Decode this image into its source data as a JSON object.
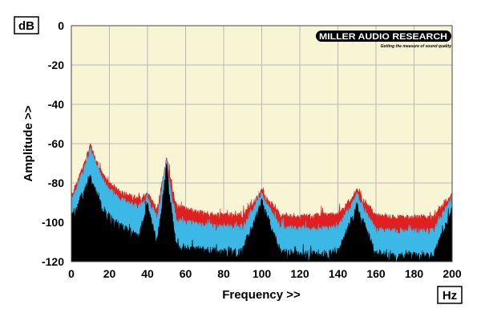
{
  "chart_data": {
    "type": "area",
    "title": "",
    "xlabel": "Frequency >>",
    "ylabel": "Amplitude >>",
    "x_unit": "Hz",
    "y_unit": "dB",
    "xlim": [
      0,
      200
    ],
    "ylim": [
      -120,
      0
    ],
    "x_ticks": [
      "0",
      "20",
      "40",
      "60",
      "80",
      "100",
      "120",
      "140",
      "160",
      "180",
      "200"
    ],
    "y_ticks": [
      "0",
      "-20",
      "-40",
      "-60",
      "-80",
      "-100",
      "-120"
    ],
    "grid": true,
    "background_color": "#f8f5d4",
    "x": [
      0,
      5,
      10,
      15,
      20,
      25,
      30,
      35,
      40,
      45,
      50,
      55,
      60,
      70,
      80,
      90,
      100,
      110,
      120,
      130,
      140,
      150,
      160,
      170,
      180,
      190,
      200
    ],
    "series": [
      {
        "color": "#e02020",
        "values": [
          -86,
          -74,
          -60,
          -72,
          -79,
          -83,
          -85,
          -87,
          -84,
          -92,
          -67,
          -90,
          -92,
          -94,
          -95,
          -95,
          -83,
          -95,
          -96,
          -95,
          -95,
          -83,
          -95,
          -96,
          -96,
          -96,
          -85
        ]
      },
      {
        "color": "#3cb8e6",
        "values": [
          -88,
          -76,
          -62,
          -74,
          -82,
          -86,
          -89,
          -91,
          -86,
          -96,
          -68,
          -97,
          -98,
          -100,
          -101,
          -101,
          -85,
          -101,
          -102,
          -102,
          -101,
          -85,
          -102,
          -103,
          -103,
          -103,
          -86
        ]
      },
      {
        "color": "#000000",
        "values": [
          -96,
          -86,
          -76,
          -88,
          -95,
          -99,
          -102,
          -105,
          -90,
          -108,
          -70,
          -110,
          -111,
          -112,
          -113,
          -112,
          -88,
          -113,
          -114,
          -114,
          -113,
          -90,
          -114,
          -115,
          -115,
          -115,
          -92
        ]
      }
    ]
  },
  "logo": {
    "name": "MILLER AUDIO RESEARCH",
    "tagline": "Getting the measure of sound quality"
  }
}
